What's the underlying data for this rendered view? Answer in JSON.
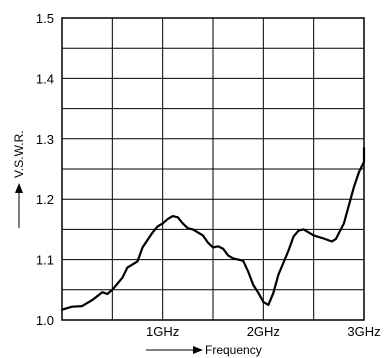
{
  "chart_data": {
    "type": "line",
    "title": "",
    "xlabel": "Frequency",
    "ylabel": "V.S.W.R.",
    "xlim": [
      0,
      3
    ],
    "ylim": [
      1.0,
      1.5
    ],
    "grid": true,
    "x_ticks": [
      {
        "value": 1,
        "label": "1GHz"
      },
      {
        "value": 2,
        "label": "2GHz"
      },
      {
        "value": 3,
        "label": "3GHz"
      }
    ],
    "y_ticks": [
      {
        "value": 1.0,
        "label": "1.0"
      },
      {
        "value": 1.1,
        "label": "1.1"
      },
      {
        "value": 1.2,
        "label": "1.2"
      },
      {
        "value": 1.3,
        "label": "1.3"
      },
      {
        "value": 1.4,
        "label": "1.4"
      },
      {
        "value": 1.5,
        "label": "1.5"
      }
    ],
    "series": [
      {
        "color": "#000000",
        "points": [
          [
            0.0,
            1.017
          ],
          [
            0.1,
            1.022
          ],
          [
            0.2,
            1.023
          ],
          [
            0.3,
            1.033
          ],
          [
            0.4,
            1.046
          ],
          [
            0.45,
            1.043
          ],
          [
            0.5,
            1.05
          ],
          [
            0.6,
            1.07
          ],
          [
            0.65,
            1.087
          ],
          [
            0.75,
            1.097
          ],
          [
            0.8,
            1.12
          ],
          [
            0.9,
            1.145
          ],
          [
            0.95,
            1.155
          ],
          [
            1.0,
            1.16
          ],
          [
            1.05,
            1.167
          ],
          [
            1.1,
            1.172
          ],
          [
            1.15,
            1.17
          ],
          [
            1.2,
            1.16
          ],
          [
            1.25,
            1.152
          ],
          [
            1.3,
            1.15
          ],
          [
            1.4,
            1.14
          ],
          [
            1.45,
            1.128
          ],
          [
            1.5,
            1.12
          ],
          [
            1.55,
            1.122
          ],
          [
            1.6,
            1.118
          ],
          [
            1.65,
            1.107
          ],
          [
            1.7,
            1.102
          ],
          [
            1.75,
            1.1
          ],
          [
            1.8,
            1.098
          ],
          [
            1.85,
            1.08
          ],
          [
            1.9,
            1.058
          ],
          [
            1.95,
            1.045
          ],
          [
            2.0,
            1.03
          ],
          [
            2.05,
            1.025
          ],
          [
            2.1,
            1.045
          ],
          [
            2.15,
            1.075
          ],
          [
            2.2,
            1.095
          ],
          [
            2.25,
            1.115
          ],
          [
            2.3,
            1.138
          ],
          [
            2.35,
            1.148
          ],
          [
            2.4,
            1.15
          ],
          [
            2.5,
            1.14
          ],
          [
            2.6,
            1.135
          ],
          [
            2.68,
            1.13
          ],
          [
            2.72,
            1.134
          ],
          [
            2.8,
            1.16
          ],
          [
            2.85,
            1.19
          ],
          [
            2.9,
            1.22
          ],
          [
            2.95,
            1.245
          ],
          [
            3.0,
            1.262
          ],
          [
            3.05,
            1.275
          ],
          [
            3.1,
            1.285
          ]
        ]
      }
    ]
  }
}
